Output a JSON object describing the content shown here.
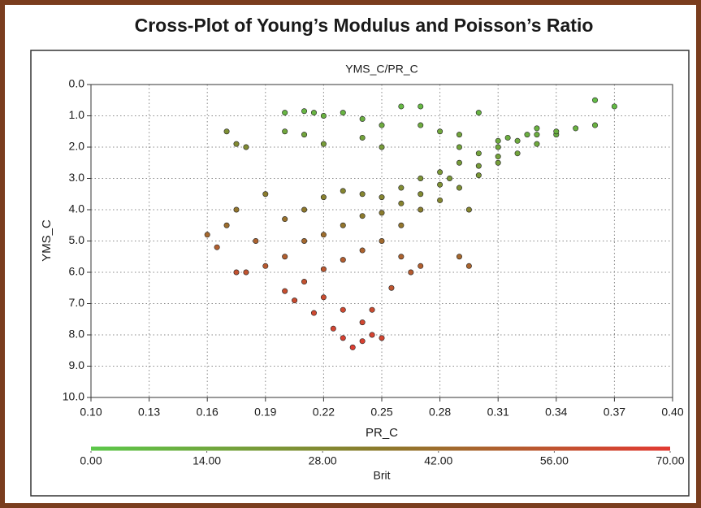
{
  "chart_data": {
    "type": "scatter",
    "title": "Cross-Plot of Young’s Modulus and Poisson’s Ratio",
    "subtitle": "YMS_C/PR_C",
    "x_label": "PR_C",
    "y_label": "YMS_C",
    "xlim": [
      0.1,
      0.4
    ],
    "xticks": [
      {
        "value": 0.1,
        "label": "0.10"
      },
      0.13,
      0.16,
      0.19,
      0.22,
      0.25,
      0.28,
      0.31,
      0.34,
      0.37,
      {
        "value": 0.4,
        "label": "0.40"
      }
    ],
    "ylim": [
      0,
      10
    ],
    "y_inverted": true,
    "yticks": [
      {
        "value": 0,
        "label": "0.0"
      },
      {
        "value": 1,
        "label": "1.0"
      },
      {
        "value": 2,
        "label": "2.0"
      },
      {
        "value": 3,
        "label": "3.0"
      },
      {
        "value": 4,
        "label": "4.0"
      },
      {
        "value": 5,
        "label": "5.0"
      },
      {
        "value": 6,
        "label": "6.0"
      },
      {
        "value": 7,
        "label": "7.0"
      },
      {
        "value": 8,
        "label": "8.0"
      },
      {
        "value": 9,
        "label": "9.0"
      },
      {
        "value": 10,
        "label": "10.0"
      }
    ],
    "grid": true,
    "colorbar": {
      "label": "Brit",
      "clim": [
        0,
        70
      ],
      "colormap": [
        "#5cc84a",
        "#8c7a2c",
        "#e23a32"
      ],
      "ticks": [
        {
          "value": 0,
          "label": "0.00"
        },
        {
          "value": 14,
          "label": "14.00"
        },
        {
          "value": 28,
          "label": "28.00"
        },
        {
          "value": 42,
          "label": "42.00"
        },
        {
          "value": 56,
          "label": "56.00"
        },
        {
          "value": 70,
          "label": "70.00"
        }
      ]
    },
    "x": [
      0.2,
      0.21,
      0.215,
      0.22,
      0.23,
      0.24,
      0.25,
      0.26,
      0.27,
      0.28,
      0.29,
      0.24,
      0.25,
      0.2,
      0.21,
      0.17,
      0.175,
      0.18,
      0.22,
      0.27,
      0.3,
      0.36,
      0.37,
      0.35,
      0.36,
      0.34,
      0.33,
      0.32,
      0.31,
      0.3,
      0.3,
      0.29,
      0.28,
      0.28,
      0.27,
      0.27,
      0.26,
      0.26,
      0.25,
      0.25,
      0.24,
      0.24,
      0.23,
      0.23,
      0.22,
      0.22,
      0.21,
      0.21,
      0.2,
      0.2,
      0.19,
      0.19,
      0.18,
      0.175,
      0.185,
      0.33,
      0.32,
      0.31,
      0.3,
      0.29,
      0.28,
      0.27,
      0.26,
      0.25,
      0.24,
      0.23,
      0.22,
      0.21,
      0.2,
      0.22,
      0.23,
      0.24,
      0.23,
      0.235,
      0.24,
      0.245,
      0.25,
      0.245,
      0.255,
      0.26,
      0.27,
      0.265,
      0.29,
      0.295,
      0.16,
      0.165,
      0.17,
      0.175,
      0.34,
      0.33,
      0.31,
      0.29,
      0.295,
      0.215,
      0.225,
      0.205,
      0.285,
      0.31,
      0.315,
      0.325
    ],
    "values": [
      0.9,
      0.85,
      0.9,
      1.0,
      0.9,
      1.1,
      1.3,
      0.7,
      1.3,
      1.5,
      1.6,
      1.7,
      2.0,
      1.5,
      1.6,
      1.5,
      1.9,
      2.0,
      1.9,
      0.7,
      0.9,
      0.5,
      0.7,
      1.4,
      1.3,
      1.6,
      1.6,
      1.8,
      2.0,
      2.2,
      2.6,
      2.5,
      2.8,
      3.2,
      3.0,
      3.5,
      3.3,
      3.8,
      3.6,
      4.1,
      3.5,
      4.2,
      3.4,
      4.5,
      3.6,
      4.8,
      4.0,
      5.0,
      4.3,
      5.5,
      3.5,
      5.8,
      6.0,
      6.0,
      5.0,
      1.9,
      2.2,
      2.5,
      2.9,
      3.3,
      3.7,
      4.0,
      4.5,
      5.0,
      5.3,
      5.6,
      5.9,
      6.3,
      6.6,
      6.8,
      7.2,
      7.6,
      8.1,
      8.4,
      8.2,
      8.0,
      8.1,
      7.2,
      6.5,
      5.5,
      5.8,
      6.0,
      5.5,
      5.8,
      4.8,
      5.2,
      4.5,
      4.0,
      1.5,
      1.4,
      1.8,
      2.0,
      4.0,
      7.3,
      7.8,
      6.9,
      3.0,
      2.3,
      1.7,
      1.6
    ],
    "brit": [
      8,
      8,
      9,
      10,
      9,
      11,
      13,
      7,
      13,
      15,
      16,
      17,
      20,
      15,
      16,
      25,
      28,
      27,
      20,
      7,
      9,
      5,
      6,
      10,
      10,
      11,
      12,
      13,
      15,
      17,
      20,
      20,
      22,
      25,
      24,
      28,
      27,
      31,
      30,
      34,
      30,
      35,
      30,
      38,
      32,
      42,
      36,
      45,
      40,
      50,
      34,
      53,
      56,
      57,
      48,
      14,
      16,
      19,
      22,
      25,
      29,
      33,
      38,
      44,
      48,
      51,
      54,
      57,
      59,
      60,
      62,
      63,
      66,
      68,
      66,
      65,
      64,
      60,
      55,
      48,
      50,
      52,
      45,
      47,
      45,
      50,
      42,
      38,
      11,
      10,
      13,
      16,
      30,
      62,
      64,
      60,
      22,
      17,
      12,
      11
    ]
  }
}
